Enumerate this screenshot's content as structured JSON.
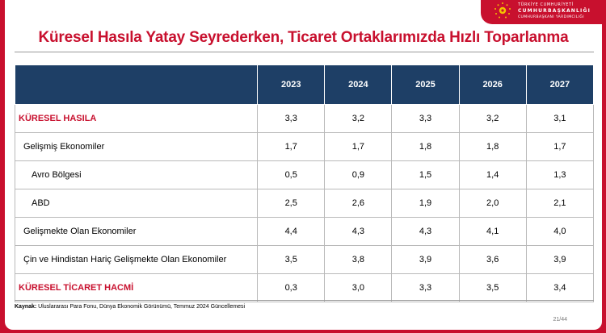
{
  "header": {
    "org_line1": "TÜRKİYE CUMHURİYETİ",
    "org_line2": "CUMHURBAŞKANLIĞI",
    "org_line3": "CUMHURBAŞKANI YARDIMCILIĞI",
    "brand_color": "#c8102e"
  },
  "title": "Küresel Hasıla Yatay Seyrederken, Ticaret Ortaklarımızda Hızlı Toparlanma",
  "table": {
    "header_color": "#1e3f66",
    "columns": [
      "",
      "2023",
      "2024",
      "2025",
      "2026",
      "2027"
    ],
    "rows": [
      {
        "label": "KÜRESEL HASILA",
        "values": [
          "3,3",
          "3,2",
          "3,3",
          "3,2",
          "3,1"
        ]
      },
      {
        "label": "Gelişmiş Ekonomiler",
        "values": [
          "1,7",
          "1,7",
          "1,8",
          "1,8",
          "1,7"
        ]
      },
      {
        "label": "Avro Bölgesi",
        "values": [
          "0,5",
          "0,9",
          "1,5",
          "1,4",
          "1,3"
        ]
      },
      {
        "label": "ABD",
        "values": [
          "2,5",
          "2,6",
          "1,9",
          "2,0",
          "2,1"
        ]
      },
      {
        "label": "Gelişmekte Olan Ekonomiler",
        "values": [
          "4,4",
          "4,3",
          "4,3",
          "4,1",
          "4,0"
        ]
      },
      {
        "label": "Çin ve Hindistan Hariç Gelişmekte Olan Ekonomiler",
        "values": [
          "3,5",
          "3,8",
          "3,9",
          "3,6",
          "3,9"
        ]
      },
      {
        "label": "KÜRESEL TİCARET HACMİ",
        "values": [
          "0,3",
          "3,0",
          "3,3",
          "3,5",
          "3,4"
        ]
      }
    ]
  },
  "source": {
    "label": "Kaynak:",
    "text": " Uluslararası Para Fonu, Dünya Ekonomik Görünümü, Temmuz 2024 Güncellemesi"
  },
  "page": "21/44"
}
